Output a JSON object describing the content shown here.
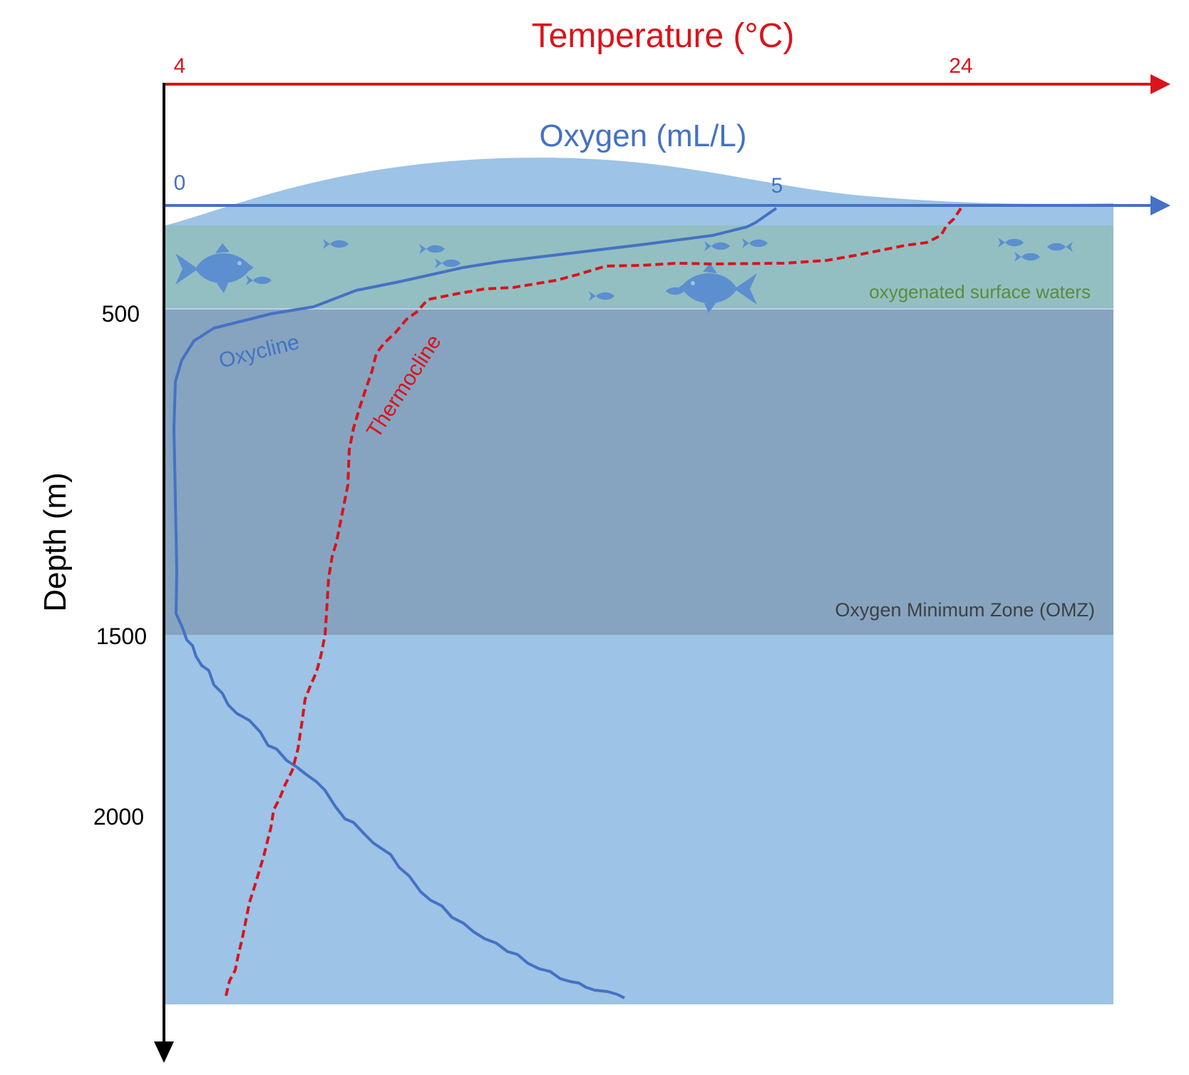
{
  "colors": {
    "temperature": "#d9141b",
    "oxygen": "#4472c4",
    "water_light": "#9dc3e6",
    "surface_band": "#93bfc3",
    "omz_band": "#86a4c0",
    "surface_label": "#5b8c3a",
    "omz_label": "#404040",
    "fish": "#5b8fcf",
    "axis": "#000000"
  },
  "temperature_axis": {
    "title": "Temperature (°C)",
    "tick_min": "4",
    "tick_max": "24"
  },
  "oxygen_axis": {
    "title": "Oxygen (mL/L)",
    "tick_min": "0",
    "tick_max": "5"
  },
  "depth_axis": {
    "title": "Depth (m)",
    "ticks": [
      "500",
      "1500",
      "2000"
    ]
  },
  "zones": {
    "surface_label": "oxygenated surface waters",
    "omz_label": "Oxygen Minimum Zone (OMZ)"
  },
  "curve_labels": {
    "oxycline": "Oxycline",
    "thermocline": "Thermocline"
  },
  "icons": {
    "fish": "fish-icon"
  }
}
